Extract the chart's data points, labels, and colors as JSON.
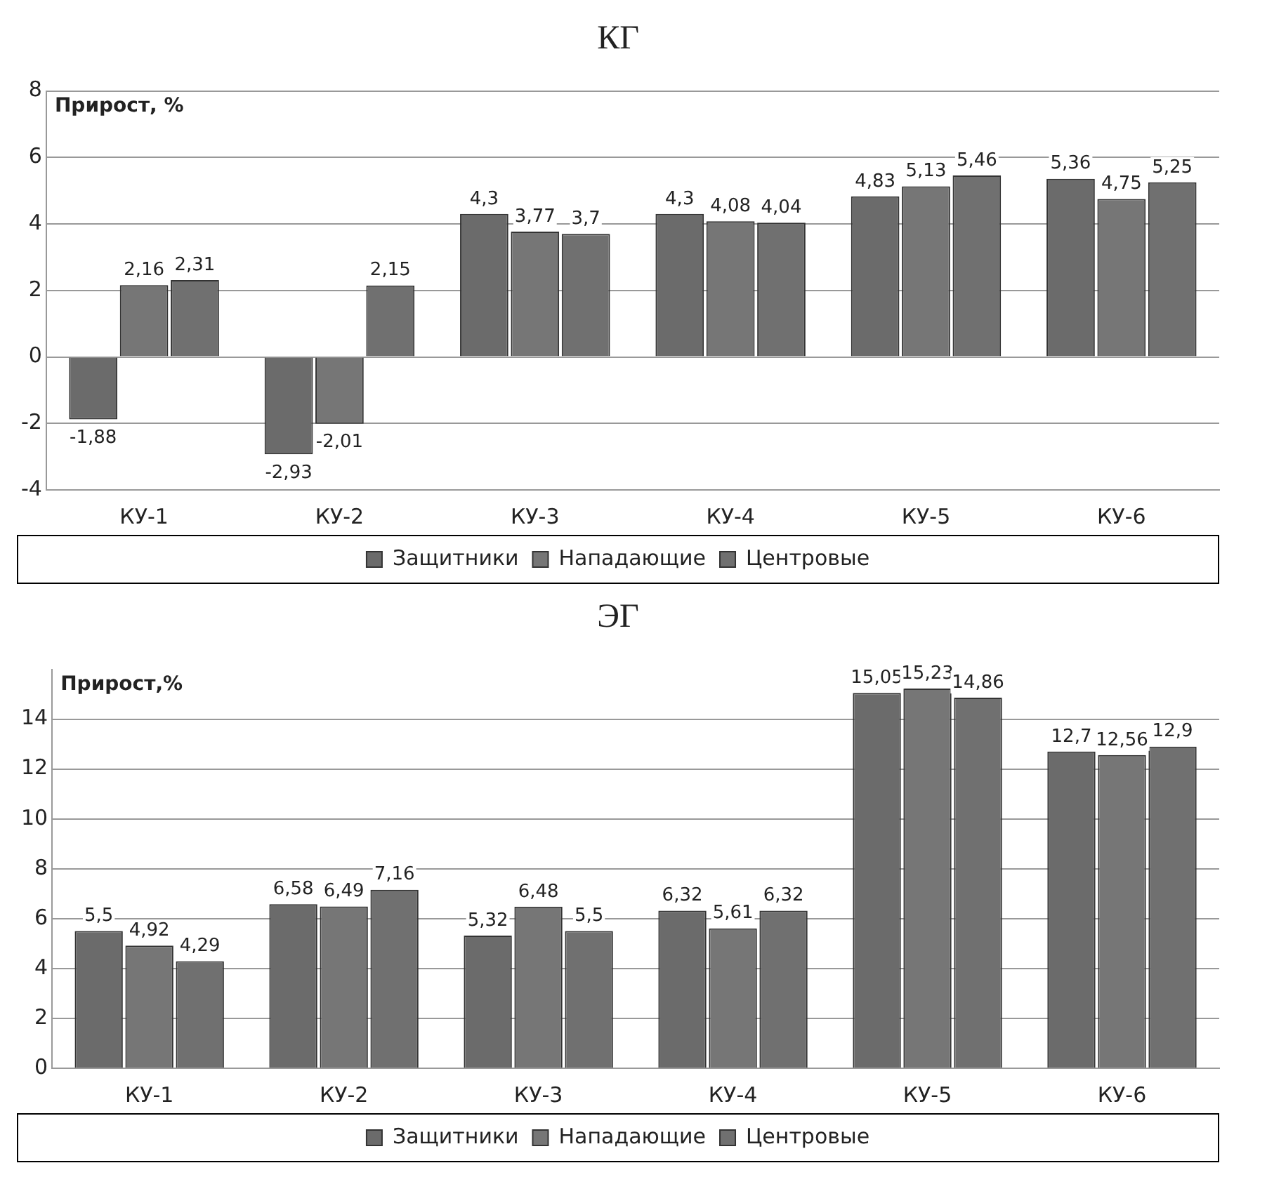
{
  "chart_data": [
    {
      "type": "bar",
      "title": "КГ",
      "ylabel": "Прирост, %",
      "categories": [
        "КУ-1",
        "КУ-2",
        "КУ-3",
        "КУ-4",
        "КУ-5",
        "КУ-6"
      ],
      "ylim": [
        -4,
        8
      ],
      "yticks": [
        -4,
        -2,
        0,
        2,
        4,
        6,
        8
      ],
      "grid": "y",
      "legend": "bottom",
      "series": [
        {
          "name": "Защитники",
          "color": "#6b6b6b",
          "values": [
            -1.88,
            -2.93,
            4.3,
            4.3,
            4.83,
            5.36
          ],
          "value_labels": [
            "-1,88",
            "-2,93",
            "4,3",
            "4,3",
            "4,83",
            "5,36"
          ]
        },
        {
          "name": "Нападающие",
          "color": "#767676",
          "values": [
            2.16,
            -2.01,
            3.77,
            4.08,
            5.13,
            4.75
          ],
          "value_labels": [
            "2,16",
            "-2,01",
            "3,77",
            "4,08",
            "5,13",
            "4,75"
          ]
        },
        {
          "name": "Центровые",
          "color": "#707070",
          "values": [
            2.31,
            2.15,
            3.7,
            4.04,
            5.46,
            5.25
          ],
          "value_labels": [
            "2,31",
            "2,15",
            "3,7",
            "4,04",
            "5,46",
            "5,25"
          ]
        }
      ]
    },
    {
      "type": "bar",
      "title": "ЭГ",
      "ylabel": "Прирост,%",
      "categories": [
        "КУ-1",
        "КУ-2",
        "КУ-3",
        "КУ-4",
        "КУ-5",
        "КУ-6"
      ],
      "ylim": [
        0,
        16
      ],
      "yticks": [
        0,
        2,
        4,
        6,
        8,
        10,
        12,
        14
      ],
      "grid": "y",
      "legend": "bottom",
      "series": [
        {
          "name": "Защитники",
          "color": "#6b6b6b",
          "values": [
            5.5,
            6.58,
            5.32,
            6.32,
            15.05,
            12.7
          ],
          "value_labels": [
            "5,5",
            "6,58",
            "5,32",
            "6,32",
            "15,05",
            "12,7"
          ]
        },
        {
          "name": "Нападающие",
          "color": "#767676",
          "values": [
            4.92,
            6.49,
            6.48,
            5.61,
            15.23,
            12.56
          ],
          "value_labels": [
            "4,92",
            "6,49",
            "6,48",
            "5,61",
            "15,23",
            "12,56"
          ]
        },
        {
          "name": "Центровые",
          "color": "#707070",
          "values": [
            4.29,
            7.16,
            5.5,
            6.32,
            14.86,
            12.9
          ],
          "value_labels": [
            "4,29",
            "7,16",
            "5,5",
            "6,32",
            "14,86",
            "12,9"
          ]
        }
      ]
    }
  ]
}
